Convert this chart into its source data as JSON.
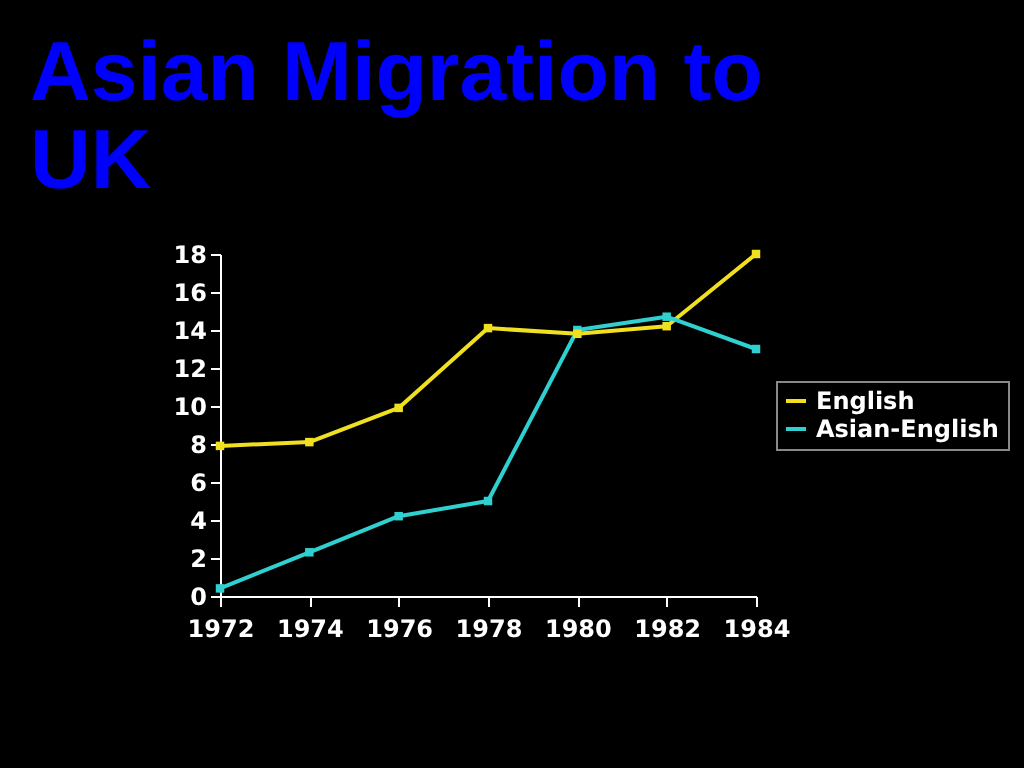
{
  "chart_data": {
    "type": "line",
    "title": "Asian Migration to UK",
    "x": [
      1972,
      1974,
      1976,
      1978,
      1980,
      1982,
      1984
    ],
    "series": [
      {
        "name": "English",
        "color": "#f0e020",
        "values": [
          7.9,
          8.1,
          9.9,
          14.1,
          13.8,
          14.2,
          18.0
        ]
      },
      {
        "name": "Asian-English",
        "color": "#30d0d0",
        "values": [
          0.4,
          2.3,
          4.2,
          5.0,
          14.0,
          14.7,
          13.0
        ]
      }
    ],
    "xlim": [
      1972,
      1984
    ],
    "xticks": [
      1972,
      1974,
      1976,
      1978,
      1980,
      1982,
      1984
    ],
    "ylim": [
      0,
      18
    ],
    "yticks": [
      0,
      2,
      4,
      6,
      8,
      10,
      12,
      14,
      16,
      18
    ],
    "grid": false,
    "legend": "right",
    "marker": "square",
    "line_style": "solid"
  }
}
